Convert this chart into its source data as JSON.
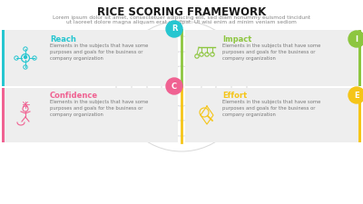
{
  "title": "RICE SCORING FRAMEWORK",
  "subtitle_line1": "Lorem ipsum dolor sit amet, consectetuer adipiscing elit, sed diam nonummy euismod tincidunt",
  "subtitle_line2": "ut laoreet dolore magna aliquam erat volutpat. Ut wisi enim ad minim veniam sediom",
  "bg_color": "#ffffff",
  "panel_color": "#eeeeee",
  "sections": [
    {
      "label": "R",
      "title": "Reach",
      "color": "#26c6d0",
      "row": 0,
      "col": 0,
      "body": "Elements in the subjects that have some\npurposes and goals for the business or\ncompany organization"
    },
    {
      "label": "I",
      "title": "Impact",
      "color": "#8dc63f",
      "row": 0,
      "col": 1,
      "body": "Elements in the subjects that have some\npurposes and goals for the business or\ncompany organization"
    },
    {
      "label": "C",
      "title": "Confidence",
      "color": "#f06292",
      "row": 1,
      "col": 0,
      "body": "Elements in the subjects that have some\npurposes and goals for the business or\ncompany organization"
    },
    {
      "label": "E",
      "title": "Effort",
      "color": "#f5c518",
      "row": 1,
      "col": 1,
      "body": "Elements in the subjects that have some\npurposes and goals for the business or\ncompany organization"
    }
  ],
  "spiral_color": "#d8d8d8",
  "title_fontsize": 8.5,
  "subtitle_fontsize": 4.2,
  "section_title_fontsize": 6.0,
  "body_fontsize": 3.8,
  "bubble_fontsize": 6.0
}
